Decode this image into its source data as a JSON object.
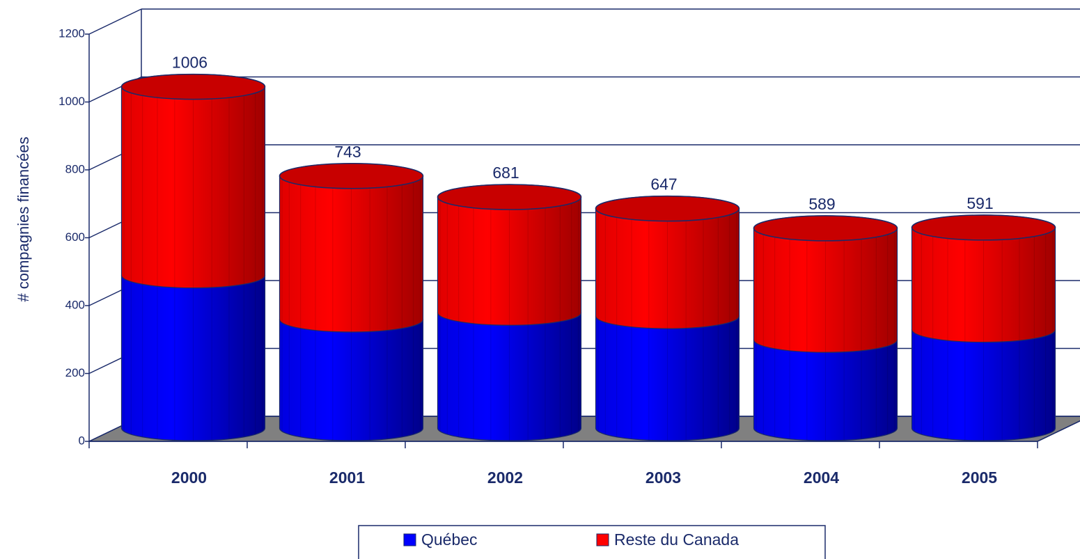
{
  "chart_data": {
    "type": "cylinder-stacked",
    "y_label": "# compagnies financées",
    "categories": [
      "2000",
      "2001",
      "2002",
      "2003",
      "2004",
      "2005"
    ],
    "series": [
      {
        "name": "Québec",
        "color": "#0000ff",
        "values": [
          450,
          320,
          340,
          330,
          260,
          290
        ]
      },
      {
        "name": "Reste du Canada",
        "color": "#ff0000",
        "values": [
          556,
          423,
          341,
          317,
          329,
          301
        ]
      }
    ],
    "totals": [
      1006,
      743,
      681,
      647,
      589,
      591
    ],
    "ylim": [
      0,
      1200
    ],
    "yticks": [
      0,
      200,
      400,
      600,
      800,
      1000,
      1200
    ],
    "grid": true
  }
}
